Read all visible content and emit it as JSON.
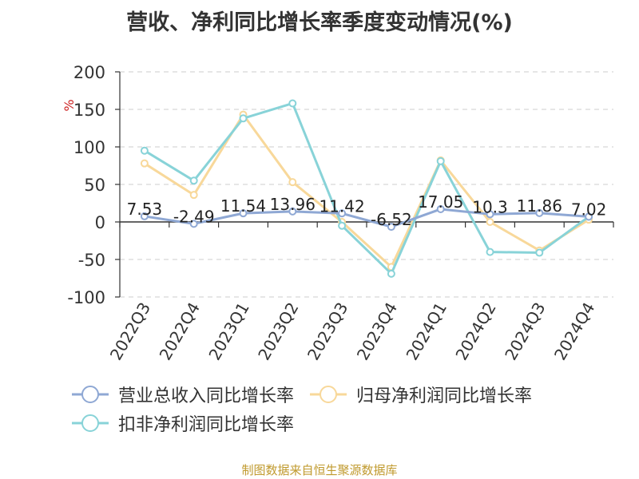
{
  "chart_data": {
    "type": "line",
    "title": "营收、净利同比增长率季度变动情况(%)",
    "ylabel": "%",
    "xlabel": "",
    "categories": [
      "2022Q3",
      "2022Q4",
      "2023Q1",
      "2023Q2",
      "2023Q3",
      "2023Q4",
      "2024Q1",
      "2024Q2",
      "2024Q3",
      "2024Q4"
    ],
    "ylim": [
      -100,
      200
    ],
    "yticks": [
      -100,
      -50,
      0,
      50,
      100,
      150,
      200
    ],
    "grid": true,
    "legend_position": "bottom",
    "series": [
      {
        "name": "营业总收入同比增长率",
        "color": "#8fa8d4",
        "values": [
          7.53,
          -2.49,
          11.54,
          13.96,
          11.42,
          -6.52,
          17.05,
          10.3,
          11.86,
          7.02
        ],
        "data_labels": [
          "7.53",
          "-2.49",
          "11.54",
          "13.96",
          "11.42",
          "-6.52",
          "17.05",
          "10.3",
          "11.86",
          "7.02"
        ]
      },
      {
        "name": "归母净利润同比增长率",
        "color": "#f8d89a",
        "values": [
          78,
          36,
          143,
          53,
          0,
          -60,
          82,
          0,
          -38,
          3
        ]
      },
      {
        "name": "扣非净利润同比增长率",
        "color": "#88d3d8",
        "values": [
          95,
          55,
          138,
          158,
          -5,
          -69,
          81,
          -40,
          -41,
          7
        ]
      }
    ]
  },
  "source_note": "制图数据来自恒生聚源数据库"
}
